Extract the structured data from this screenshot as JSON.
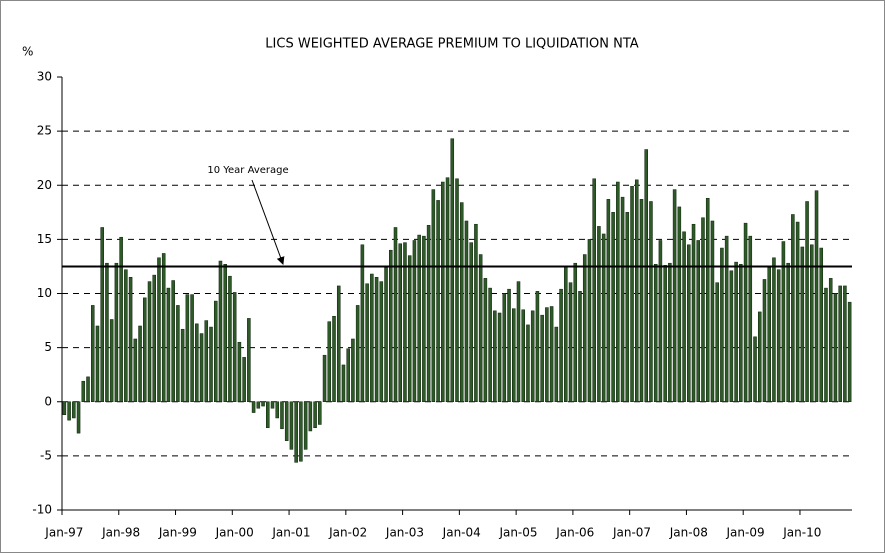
{
  "chart_data": {
    "type": "bar",
    "title": "LICS WEIGHTED AVERAGE PREMIUM TO LIQUIDATION NTA",
    "y_label": "%",
    "average_label": "10 Year Average",
    "average": 12.5,
    "color": "#2d5a27",
    "ylim": [
      -10,
      30
    ],
    "yticks": [
      -10,
      -5,
      0,
      5,
      10,
      15,
      20,
      25,
      30
    ],
    "grid": true,
    "categories": [
      "Jan-97",
      null,
      null,
      null,
      null,
      null,
      null,
      null,
      null,
      null,
      null,
      null,
      "Jan-98",
      null,
      null,
      null,
      null,
      null,
      null,
      null,
      null,
      null,
      null,
      null,
      "Jan-99",
      null,
      null,
      null,
      null,
      null,
      null,
      null,
      null,
      null,
      null,
      null,
      "Jan-00",
      null,
      null,
      null,
      null,
      null,
      null,
      null,
      null,
      null,
      null,
      null,
      "Jan-01",
      null,
      null,
      null,
      null,
      null,
      null,
      null,
      null,
      null,
      null,
      null,
      "Jan-02",
      null,
      null,
      null,
      null,
      null,
      null,
      null,
      null,
      null,
      null,
      null,
      "Jan-03",
      null,
      null,
      null,
      null,
      null,
      null,
      null,
      null,
      null,
      null,
      null,
      "Jan-04",
      null,
      null,
      null,
      null,
      null,
      null,
      null,
      null,
      null,
      null,
      null,
      "Jan-05",
      null,
      null,
      null,
      null,
      null,
      null,
      null,
      null,
      null,
      null,
      null,
      "Jan-06",
      null,
      null,
      null,
      null,
      null,
      null,
      null,
      null,
      null,
      null,
      null,
      "Jan-07",
      null,
      null,
      null,
      null,
      null,
      null,
      null,
      null,
      null,
      null,
      null,
      "Jan-08",
      null,
      null,
      null,
      null,
      null,
      null,
      null,
      null,
      null,
      null,
      null,
      "Jan-09",
      null,
      null,
      null,
      null,
      null,
      null,
      null,
      null,
      null,
      null,
      null,
      "Jan-10",
      null,
      null,
      null,
      null,
      null,
      null,
      null,
      null,
      null,
      null
    ],
    "values": [
      -1.2,
      -1.7,
      -1.5,
      -2.9,
      1.9,
      2.3,
      8.9,
      7.0,
      16.1,
      12.8,
      7.6,
      12.8,
      15.2,
      12.2,
      11.5,
      5.8,
      7.0,
      9.6,
      11.1,
      11.7,
      13.3,
      13.7,
      10.5,
      11.2,
      8.9,
      6.7,
      9.9,
      9.9,
      7.2,
      6.3,
      7.5,
      6.9,
      9.3,
      13.0,
      12.7,
      11.6,
      10.1,
      5.5,
      4.1,
      7.7,
      -1.0,
      -0.6,
      -0.4,
      -2.4,
      -0.6,
      -1.5,
      -2.5,
      -3.6,
      -4.4,
      -5.6,
      -5.5,
      -4.4,
      -2.7,
      -2.4,
      -2.1,
      4.3,
      7.4,
      7.9,
      10.7,
      3.4,
      4.9,
      5.8,
      8.9,
      14.5,
      10.9,
      11.8,
      11.5,
      11.1,
      12.4,
      14.0,
      16.1,
      14.6,
      14.7,
      13.5,
      14.9,
      15.4,
      15.3,
      16.3,
      19.6,
      18.6,
      20.3,
      20.7,
      24.3,
      20.6,
      18.4,
      16.7,
      14.7,
      16.4,
      13.6,
      11.4,
      10.5,
      8.4,
      8.2,
      10.0,
      10.4,
      8.6,
      11.1,
      8.5,
      7.1,
      8.4,
      10.2,
      8.0,
      8.7,
      8.8,
      6.9,
      10.4,
      12.5,
      11.0,
      12.8,
      10.2,
      13.6,
      15.0,
      20.6,
      16.2,
      15.5,
      18.7,
      17.5,
      20.3,
      18.9,
      17.5,
      19.9,
      20.5,
      18.7,
      23.3,
      18.5,
      12.7,
      14.9,
      12.6,
      12.8,
      19.6,
      18.0,
      15.7,
      14.5,
      16.4,
      14.9,
      17.0,
      18.8,
      16.7,
      11.0,
      14.2,
      15.3,
      12.1,
      12.9,
      12.7,
      16.5,
      15.3,
      6.0,
      8.3,
      11.3,
      12.4,
      13.3,
      12.2,
      14.8,
      12.8,
      17.3,
      16.6,
      14.3,
      18.5,
      14.5,
      19.5,
      14.2,
      10.5,
      11.4,
      10.0,
      10.7,
      10.7,
      9.2
    ]
  }
}
